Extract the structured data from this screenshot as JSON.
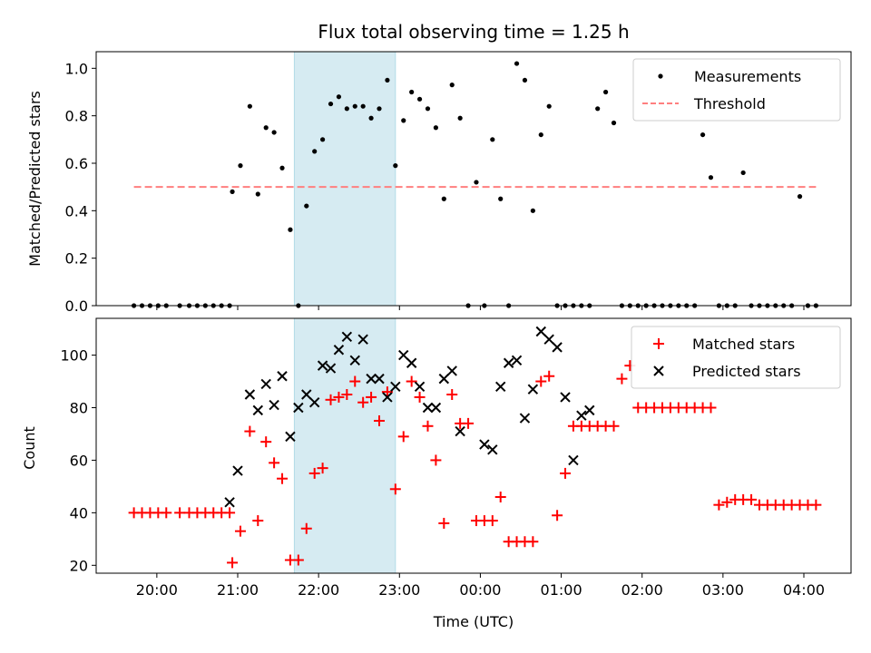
{
  "chart_data": [
    {
      "type": "scatter",
      "title": "Flux total observing time = 1.25 h",
      "xlabel": "",
      "ylabel": "Matched/Predicted stars",
      "xlim": [
        "19:15",
        "04:35"
      ],
      "ylim": [
        0,
        1.07
      ],
      "grid": false,
      "legend_position": "top-right",
      "shaded_interval": [
        "21:42",
        "22:57"
      ],
      "x_tick_labels": [
        "20:00",
        "21:00",
        "22:00",
        "23:00",
        "00:00",
        "01:00",
        "02:00",
        "03:00",
        "04:00"
      ],
      "y_ticks": [
        0.0,
        0.2,
        0.4,
        0.6,
        0.8,
        1.0
      ],
      "y_tick_labels": [
        "0.0",
        "0.2",
        "0.4",
        "0.6",
        "0.8",
        "1.0"
      ],
      "series": [
        {
          "name": "Measurements",
          "kind": "points",
          "color": "#000000",
          "x": [
            "19:43",
            "19:49",
            "19:55",
            "20:01",
            "20:07",
            "20:17",
            "20:24",
            "20:30",
            "20:36",
            "20:42",
            "20:48",
            "20:54",
            "20:56",
            "21:02",
            "21:09",
            "21:15",
            "21:21",
            "21:27",
            "21:33",
            "21:39",
            "21:45",
            "21:51",
            "21:57",
            "22:03",
            "22:09",
            "22:15",
            "22:21",
            "22:27",
            "22:33",
            "22:39",
            "22:45",
            "22:51",
            "22:57",
            "23:03",
            "23:09",
            "23:15",
            "23:21",
            "23:27",
            "23:33",
            "23:39",
            "23:45",
            "23:51",
            "23:57",
            "00:03",
            "00:09",
            "00:15",
            "00:21",
            "00:27",
            "00:33",
            "00:39",
            "00:45",
            "00:51",
            "00:57",
            "01:03",
            "01:09",
            "01:15",
            "01:21",
            "01:27",
            "01:33",
            "01:39",
            "01:45",
            "01:51",
            "01:57",
            "02:03",
            "02:09",
            "02:15",
            "02:21",
            "02:27",
            "02:33",
            "02:39",
            "02:45",
            "02:51",
            "02:57",
            "03:03",
            "03:09",
            "03:15",
            "03:21",
            "03:27",
            "03:33",
            "03:39",
            "03:45",
            "03:51",
            "03:57",
            "04:03",
            "04:09"
          ],
          "y": [
            0,
            0,
            0,
            0,
            0,
            0,
            0,
            0,
            0,
            0,
            0,
            0,
            0.48,
            0.59,
            0.84,
            0.47,
            0.75,
            0.73,
            0.58,
            0.32,
            0,
            0.42,
            0.65,
            0.7,
            0.85,
            0.88,
            0.83,
            0.84,
            0.84,
            0.79,
            0.83,
            0.95,
            0.59,
            0.78,
            0.9,
            0.87,
            0.83,
            0.75,
            0.45,
            0.93,
            0.79,
            0,
            0.52,
            0,
            0.7,
            0.45,
            0,
            1.02,
            0.95,
            0.4,
            0.72,
            0.84,
            0,
            0,
            0,
            0,
            0,
            0.83,
            0.9,
            0.77,
            0,
            0,
            0,
            0,
            0,
            0,
            0,
            0,
            0,
            0,
            0.72,
            0.54,
            0,
            0,
            0,
            0.56,
            0,
            0,
            0,
            0,
            0,
            0,
            0.46,
            0,
            0
          ]
        },
        {
          "name": "Threshold",
          "kind": "dashed-line",
          "color": "#ff7f7f",
          "x": [
            "19:43",
            "04:09"
          ],
          "y": [
            0.5,
            0.5
          ]
        }
      ]
    },
    {
      "type": "scatter",
      "title": "",
      "xlabel": "Time (UTC)",
      "ylabel": "Count",
      "xlim": [
        "19:15",
        "04:35"
      ],
      "ylim": [
        17,
        114
      ],
      "grid": false,
      "legend_position": "top-right",
      "shaded_interval": [
        "21:42",
        "22:57"
      ],
      "x_tick_labels": [
        "20:00",
        "21:00",
        "22:00",
        "23:00",
        "00:00",
        "01:00",
        "02:00",
        "03:00",
        "04:00"
      ],
      "y_ticks": [
        20,
        40,
        60,
        80,
        100
      ],
      "y_tick_labels": [
        "20",
        "40",
        "60",
        "80",
        "100"
      ],
      "series": [
        {
          "name": "Matched stars",
          "kind": "plus",
          "color": "#ff0000",
          "x": [
            "19:43",
            "19:49",
            "19:55",
            "20:01",
            "20:07",
            "20:17",
            "20:24",
            "20:30",
            "20:36",
            "20:42",
            "20:48",
            "20:54",
            "20:56",
            "21:02",
            "21:09",
            "21:15",
            "21:21",
            "21:27",
            "21:33",
            "21:39",
            "21:45",
            "21:51",
            "21:57",
            "22:03",
            "22:09",
            "22:15",
            "22:21",
            "22:27",
            "22:33",
            "22:39",
            "22:45",
            "22:51",
            "22:57",
            "23:03",
            "23:09",
            "23:15",
            "23:21",
            "23:27",
            "23:33",
            "23:39",
            "23:45",
            "23:51",
            "23:57",
            "00:03",
            "00:09",
            "00:15",
            "00:21",
            "00:27",
            "00:33",
            "00:39",
            "00:45",
            "00:51",
            "00:57",
            "01:03",
            "01:09",
            "01:15",
            "01:21",
            "01:27",
            "01:33",
            "01:39",
            "01:45",
            "01:51",
            "01:57",
            "02:03",
            "02:09",
            "02:15",
            "02:21",
            "02:27",
            "02:33",
            "02:39",
            "02:45",
            "02:51",
            "02:57",
            "03:03",
            "03:09",
            "03:15",
            "03:21",
            "03:27",
            "03:33",
            "03:39",
            "03:45",
            "03:51",
            "03:57",
            "04:03",
            "04:09"
          ],
          "y": [
            40,
            40,
            40,
            40,
            40,
            40,
            40,
            40,
            40,
            40,
            40,
            40,
            21,
            33,
            71,
            37,
            67,
            59,
            53,
            22,
            22,
            34,
            55,
            57,
            83,
            84,
            85,
            90,
            82,
            84,
            75,
            86,
            49,
            69,
            90,
            84,
            73,
            60,
            36,
            85,
            74,
            74,
            37,
            37,
            37,
            46,
            29,
            29,
            29,
            29,
            90,
            92,
            39,
            55,
            73,
            73,
            73,
            73,
            73,
            73,
            91,
            96,
            80,
            80,
            80,
            80,
            80,
            80,
            80,
            80,
            80,
            80,
            43,
            44,
            45,
            45,
            45,
            43,
            43,
            43,
            43,
            43,
            43,
            43,
            43
          ]
        },
        {
          "name": "Predicted stars",
          "kind": "cross",
          "color": "#000000",
          "x": [
            "20:54",
            "21:00",
            "21:09",
            "21:15",
            "21:21",
            "21:27",
            "21:33",
            "21:39",
            "21:45",
            "21:51",
            "21:57",
            "22:03",
            "22:09",
            "22:15",
            "22:21",
            "22:27",
            "22:33",
            "22:39",
            "22:45",
            "22:51",
            "22:57",
            "23:03",
            "23:09",
            "23:15",
            "23:21",
            "23:27",
            "23:33",
            "23:39",
            "23:45",
            "00:03",
            "00:09",
            "00:15",
            "00:21",
            "00:27",
            "00:33",
            "00:39",
            "00:45",
            "00:51",
            "00:57",
            "01:03",
            "01:09",
            "01:15",
            "01:21",
            "01:27",
            "01:33",
            "01:39",
            "01:45",
            "01:51",
            "01:57",
            "02:03",
            "02:09",
            "02:15",
            "02:21",
            "02:27",
            "02:33",
            "02:39",
            "02:45",
            "02:51",
            "02:57",
            "03:03",
            "03:09",
            "03:15",
            "03:21",
            "03:27",
            "03:33",
            "03:39",
            "03:45",
            "03:51",
            "03:57",
            "04:03",
            "04:09"
          ],
          "y": [
            44,
            56,
            85,
            79,
            89,
            81,
            92,
            69,
            80,
            85,
            82,
            96,
            95,
            102,
            107,
            98,
            106,
            91,
            91,
            84,
            88,
            100,
            97,
            88,
            80,
            80,
            91,
            94,
            71,
            66,
            64,
            88,
            97,
            98,
            76,
            87,
            109,
            106,
            103,
            84,
            60,
            77,
            79,
            null,
            null,
            null,
            null,
            null,
            null,
            null,
            null,
            null,
            null,
            null,
            null,
            null,
            null,
            null,
            null,
            null,
            null,
            null,
            null,
            null,
            null,
            null,
            null,
            null,
            null,
            null,
            null
          ]
        }
      ]
    }
  ]
}
